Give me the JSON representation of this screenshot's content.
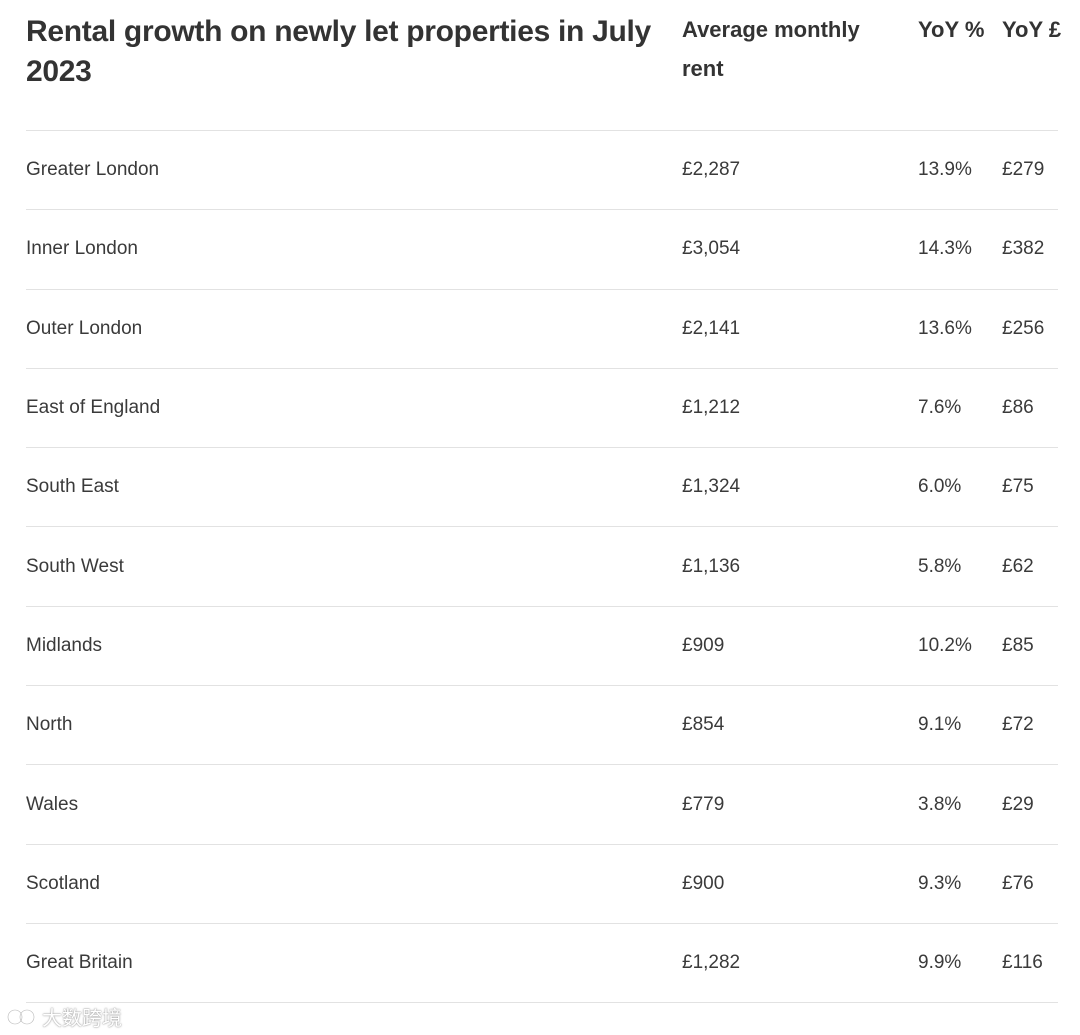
{
  "table": {
    "title": "Rental growth on newly let properties in July 2023",
    "columns": {
      "rent": "Average monthly rent",
      "yoy_pct": "YoY %",
      "yoy_gbp": "YoY £"
    },
    "rows": [
      {
        "region": "Greater London",
        "rent": "£2,287",
        "yoy_pct": "13.9%",
        "yoy_gbp": "£279"
      },
      {
        "region": "Inner London",
        "rent": "£3,054",
        "yoy_pct": "14.3%",
        "yoy_gbp": "£382"
      },
      {
        "region": "Outer London",
        "rent": "£2,141",
        "yoy_pct": "13.6%",
        "yoy_gbp": "£256"
      },
      {
        "region": "East of England",
        "rent": "£1,212",
        "yoy_pct": "7.6%",
        "yoy_gbp": "£86"
      },
      {
        "region": "South East",
        "rent": "£1,324",
        "yoy_pct": "6.0%",
        "yoy_gbp": "£75"
      },
      {
        "region": "South West",
        "rent": "£1,136",
        "yoy_pct": "5.8%",
        "yoy_gbp": "£62"
      },
      {
        "region": "Midlands",
        "rent": "£909",
        "yoy_pct": "10.2%",
        "yoy_gbp": "£85"
      },
      {
        "region": "North",
        "rent": "£854",
        "yoy_pct": "9.1%",
        "yoy_gbp": "£72"
      },
      {
        "region": "Wales",
        "rent": "£779",
        "yoy_pct": "3.8%",
        "yoy_gbp": "£29"
      },
      {
        "region": "Scotland",
        "rent": "£900",
        "yoy_pct": "9.3%",
        "yoy_gbp": "£76"
      },
      {
        "region": "Great Britain",
        "rent": "£1,282",
        "yoy_pct": "9.9%",
        "yoy_gbp": "£116"
      }
    ]
  },
  "watermark": {
    "text": "大数跨境",
    "icon": "brand-logo-icon"
  }
}
